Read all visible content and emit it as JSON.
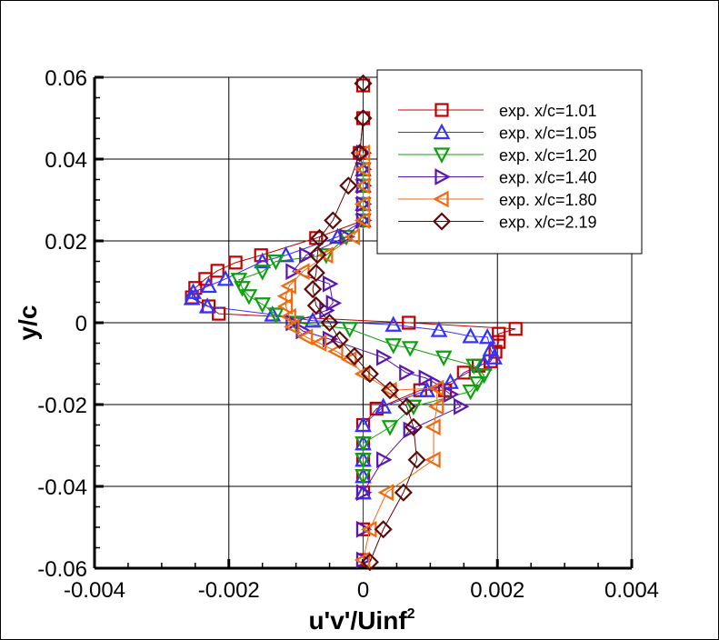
{
  "chart_data": {
    "type": "line",
    "title": "",
    "xlabel": "u'v'/Uinf^2",
    "xlabel_main": "u'v'/Uinf",
    "xlabel_sup": "2",
    "ylabel": "y/c",
    "xlim": [
      -0.004,
      0.004
    ],
    "ylim": [
      -0.06,
      0.06
    ],
    "xticks": [
      -0.004,
      -0.002,
      0,
      0.002,
      0.004
    ],
    "xtick_labels": [
      "-0.004",
      "-0.002",
      "0",
      "0.002",
      "0.004"
    ],
    "yticks": [
      -0.06,
      -0.04,
      -0.02,
      0,
      0.02,
      0.04,
      0.06
    ],
    "ytick_labels": [
      "-0.06",
      "-0.04",
      "-0.02",
      "0",
      "0.02",
      "0.04",
      "0.06"
    ],
    "grid": true,
    "legend_position": "upper right",
    "series": [
      {
        "name": "exp. x/c=1.01",
        "color": "#c00000",
        "marker": "square",
        "points": [
          [
            0.0,
            0.058
          ],
          [
            0.0,
            0.05
          ],
          [
            -5e-05,
            0.0415
          ],
          [
            0.0,
            0.0375
          ],
          [
            0.0,
            0.0335
          ],
          [
            0.0,
            0.029
          ],
          [
            0.0,
            0.025
          ],
          [
            -0.0007,
            0.0207
          ],
          [
            -0.00152,
            0.0165
          ],
          [
            -0.0019,
            0.0147
          ],
          [
            -0.00217,
            0.0127
          ],
          [
            -0.00235,
            0.0107
          ],
          [
            -0.0025,
            0.0085
          ],
          [
            -0.00255,
            0.0062
          ],
          [
            -0.0023,
            0.004
          ],
          [
            -0.00215,
            0.0022
          ],
          [
            0.00068,
            0.0
          ],
          [
            0.00227,
            -0.0015
          ],
          [
            0.00202,
            -0.0027
          ],
          [
            0.00202,
            -0.0047
          ],
          [
            0.00197,
            -0.0071
          ],
          [
            0.0019,
            -0.0094
          ],
          [
            0.00172,
            -0.0105
          ],
          [
            0.0015,
            -0.0122
          ],
          [
            0.00122,
            -0.0165
          ],
          [
            0.00085,
            -0.0165
          ],
          [
            0.0002,
            -0.021
          ],
          [
            0.0,
            -0.025
          ],
          [
            0.0,
            -0.0295
          ],
          [
            0.0,
            -0.0335
          ],
          [
            0.0,
            -0.0375
          ],
          [
            0.0,
            -0.0415
          ],
          [
            0.0,
            -0.0505
          ],
          [
            0.0,
            -0.058
          ]
        ]
      },
      {
        "name": "exp. x/c=1.05",
        "color": "#3333ff",
        "marker": "triangle-up",
        "points": [
          [
            0.0,
            0.0375
          ],
          [
            0.0,
            0.0335
          ],
          [
            0.0,
            0.029
          ],
          [
            0.0,
            0.025
          ],
          [
            -0.00038,
            0.021
          ],
          [
            -0.00115,
            0.0165
          ],
          [
            -0.0015,
            0.015
          ],
          [
            -0.00205,
            0.0107
          ],
          [
            -0.0023,
            0.009
          ],
          [
            -0.00253,
            0.0075
          ],
          [
            -0.00255,
            0.006
          ],
          [
            -0.00232,
            0.004
          ],
          [
            -0.00135,
            0.002
          ],
          [
            -0.00075,
            0.0005
          ],
          [
            0.00045,
            -0.0005
          ],
          [
            0.00113,
            -0.0018
          ],
          [
            0.0016,
            -0.0033
          ],
          [
            0.00185,
            -0.0035
          ],
          [
            0.0019,
            -0.0065
          ],
          [
            0.00195,
            -0.0085
          ],
          [
            0.0018,
            -0.01
          ],
          [
            0.0013,
            -0.0145
          ],
          [
            0.00095,
            -0.0165
          ],
          [
            0.0003,
            -0.0205
          ],
          [
            0.0,
            -0.025
          ],
          [
            0.0,
            -0.0295
          ],
          [
            0.0,
            -0.0335
          ],
          [
            0.0,
            -0.0375
          ],
          [
            0.0,
            -0.0415
          ]
        ]
      },
      {
        "name": "exp. x/c=1.20",
        "color": "#109f10",
        "marker": "triangle-down",
        "points": [
          [
            0.0,
            0.0375
          ],
          [
            0.0,
            0.0335
          ],
          [
            0.0,
            0.029
          ],
          [
            0.0,
            0.025
          ],
          [
            -0.00025,
            0.021
          ],
          [
            -0.00055,
            0.0165
          ],
          [
            -0.0013,
            0.015
          ],
          [
            -0.0015,
            0.0125
          ],
          [
            -0.00185,
            0.0105
          ],
          [
            -0.0018,
            0.0085
          ],
          [
            -0.0017,
            0.0065
          ],
          [
            -0.0015,
            0.0045
          ],
          [
            -0.0013,
            0.002
          ],
          [
            -0.001,
            0.0
          ],
          [
            -0.0002,
            -0.0015
          ],
          [
            0.00045,
            -0.0055
          ],
          [
            0.0007,
            -0.0062
          ],
          [
            0.0012,
            -0.0085
          ],
          [
            0.00165,
            -0.0105
          ],
          [
            0.0018,
            -0.0128
          ],
          [
            0.0017,
            -0.0148
          ],
          [
            0.0016,
            -0.0168
          ],
          [
            0.00075,
            -0.0205
          ],
          [
            0.0004,
            -0.0255
          ],
          [
            0.0,
            -0.0295
          ],
          [
            0.0,
            -0.0335
          ],
          [
            0.0,
            -0.0375
          ]
        ]
      },
      {
        "name": "exp. x/c=1.40",
        "color": "#5a16b0",
        "marker": "triangle-right",
        "points": [
          [
            0.0,
            0.0415
          ],
          [
            0.0,
            0.0375
          ],
          [
            0.0,
            0.0335
          ],
          [
            0.0,
            0.029
          ],
          [
            0.0,
            0.025
          ],
          [
            -0.00025,
            0.021
          ],
          [
            -0.00085,
            0.0165
          ],
          [
            -0.00105,
            0.0125
          ],
          [
            -0.0005,
            0.0095
          ],
          [
            -0.00045,
            0.0048
          ],
          [
            -0.00055,
            0.003
          ],
          [
            -0.00105,
            0.0
          ],
          [
            -0.0009,
            -0.002
          ],
          [
            -0.0005,
            -0.004
          ],
          [
            0.0003,
            -0.0085
          ],
          [
            0.00064,
            -0.0122
          ],
          [
            0.00093,
            -0.0135
          ],
          [
            0.0011,
            -0.015
          ],
          [
            0.0013,
            -0.0175
          ],
          [
            0.00145,
            -0.0205
          ],
          [
            0.0007,
            -0.0262
          ],
          [
            0.0003,
            -0.0335
          ],
          [
            0.0,
            -0.0415
          ],
          [
            0.0,
            -0.0505
          ],
          [
            0.0,
            -0.058
          ]
        ]
      },
      {
        "name": "exp. x/c=1.80",
        "color": "#f06a10",
        "marker": "triangle-left",
        "points": [
          [
            0.0,
            0.0415
          ],
          [
            0.0,
            0.0375
          ],
          [
            0.0,
            0.0335
          ],
          [
            0.0,
            0.029
          ],
          [
            0.0,
            0.025
          ],
          [
            -0.00015,
            0.021
          ],
          [
            -0.00055,
            0.0165
          ],
          [
            -0.0009,
            0.0125
          ],
          [
            -0.0011,
            0.009
          ],
          [
            -0.00115,
            0.0065
          ],
          [
            -0.00115,
            0.004
          ],
          [
            -0.0011,
            0.0015
          ],
          [
            -0.00105,
            -0.001
          ],
          [
            -0.00085,
            -0.0035
          ],
          [
            -0.00065,
            -0.005
          ],
          [
            -0.0004,
            -0.007
          ],
          [
            -0.0002,
            -0.009
          ],
          [
            0.0,
            -0.0125
          ],
          [
            0.0004,
            -0.0165
          ],
          [
            0.0011,
            -0.016
          ],
          [
            0.0011,
            -0.0205
          ],
          [
            0.00105,
            -0.0255
          ],
          [
            0.00105,
            -0.0335
          ],
          [
            0.00035,
            -0.0415
          ],
          [
            0.0001,
            -0.0505
          ],
          [
            0.0,
            -0.058
          ]
        ]
      },
      {
        "name": "exp. x/c=2.19",
        "color": "#5c0a0a",
        "marker": "diamond",
        "points": [
          [
            0.0,
            0.0585
          ],
          [
            0.0,
            0.05
          ],
          [
            -5e-05,
            0.0415
          ],
          [
            -0.00022,
            0.0335
          ],
          [
            -0.00045,
            0.025
          ],
          [
            -0.00065,
            0.0207
          ],
          [
            -0.00068,
            0.0166
          ],
          [
            -0.0007,
            0.0122
          ],
          [
            -0.00075,
            0.0082
          ],
          [
            -0.0007,
            0.0042
          ],
          [
            -0.0005,
            0.0
          ],
          [
            -0.00035,
            -0.0042
          ],
          [
            -0.00013,
            -0.0082
          ],
          [
            0.0001,
            -0.0125
          ],
          [
            0.0004,
            -0.0165
          ],
          [
            0.00065,
            -0.0205
          ],
          [
            0.00075,
            -0.0255
          ],
          [
            0.0008,
            -0.0335
          ],
          [
            0.0006,
            -0.0415
          ],
          [
            0.0003,
            -0.0505
          ],
          [
            0.0001,
            -0.0585
          ]
        ]
      }
    ]
  }
}
